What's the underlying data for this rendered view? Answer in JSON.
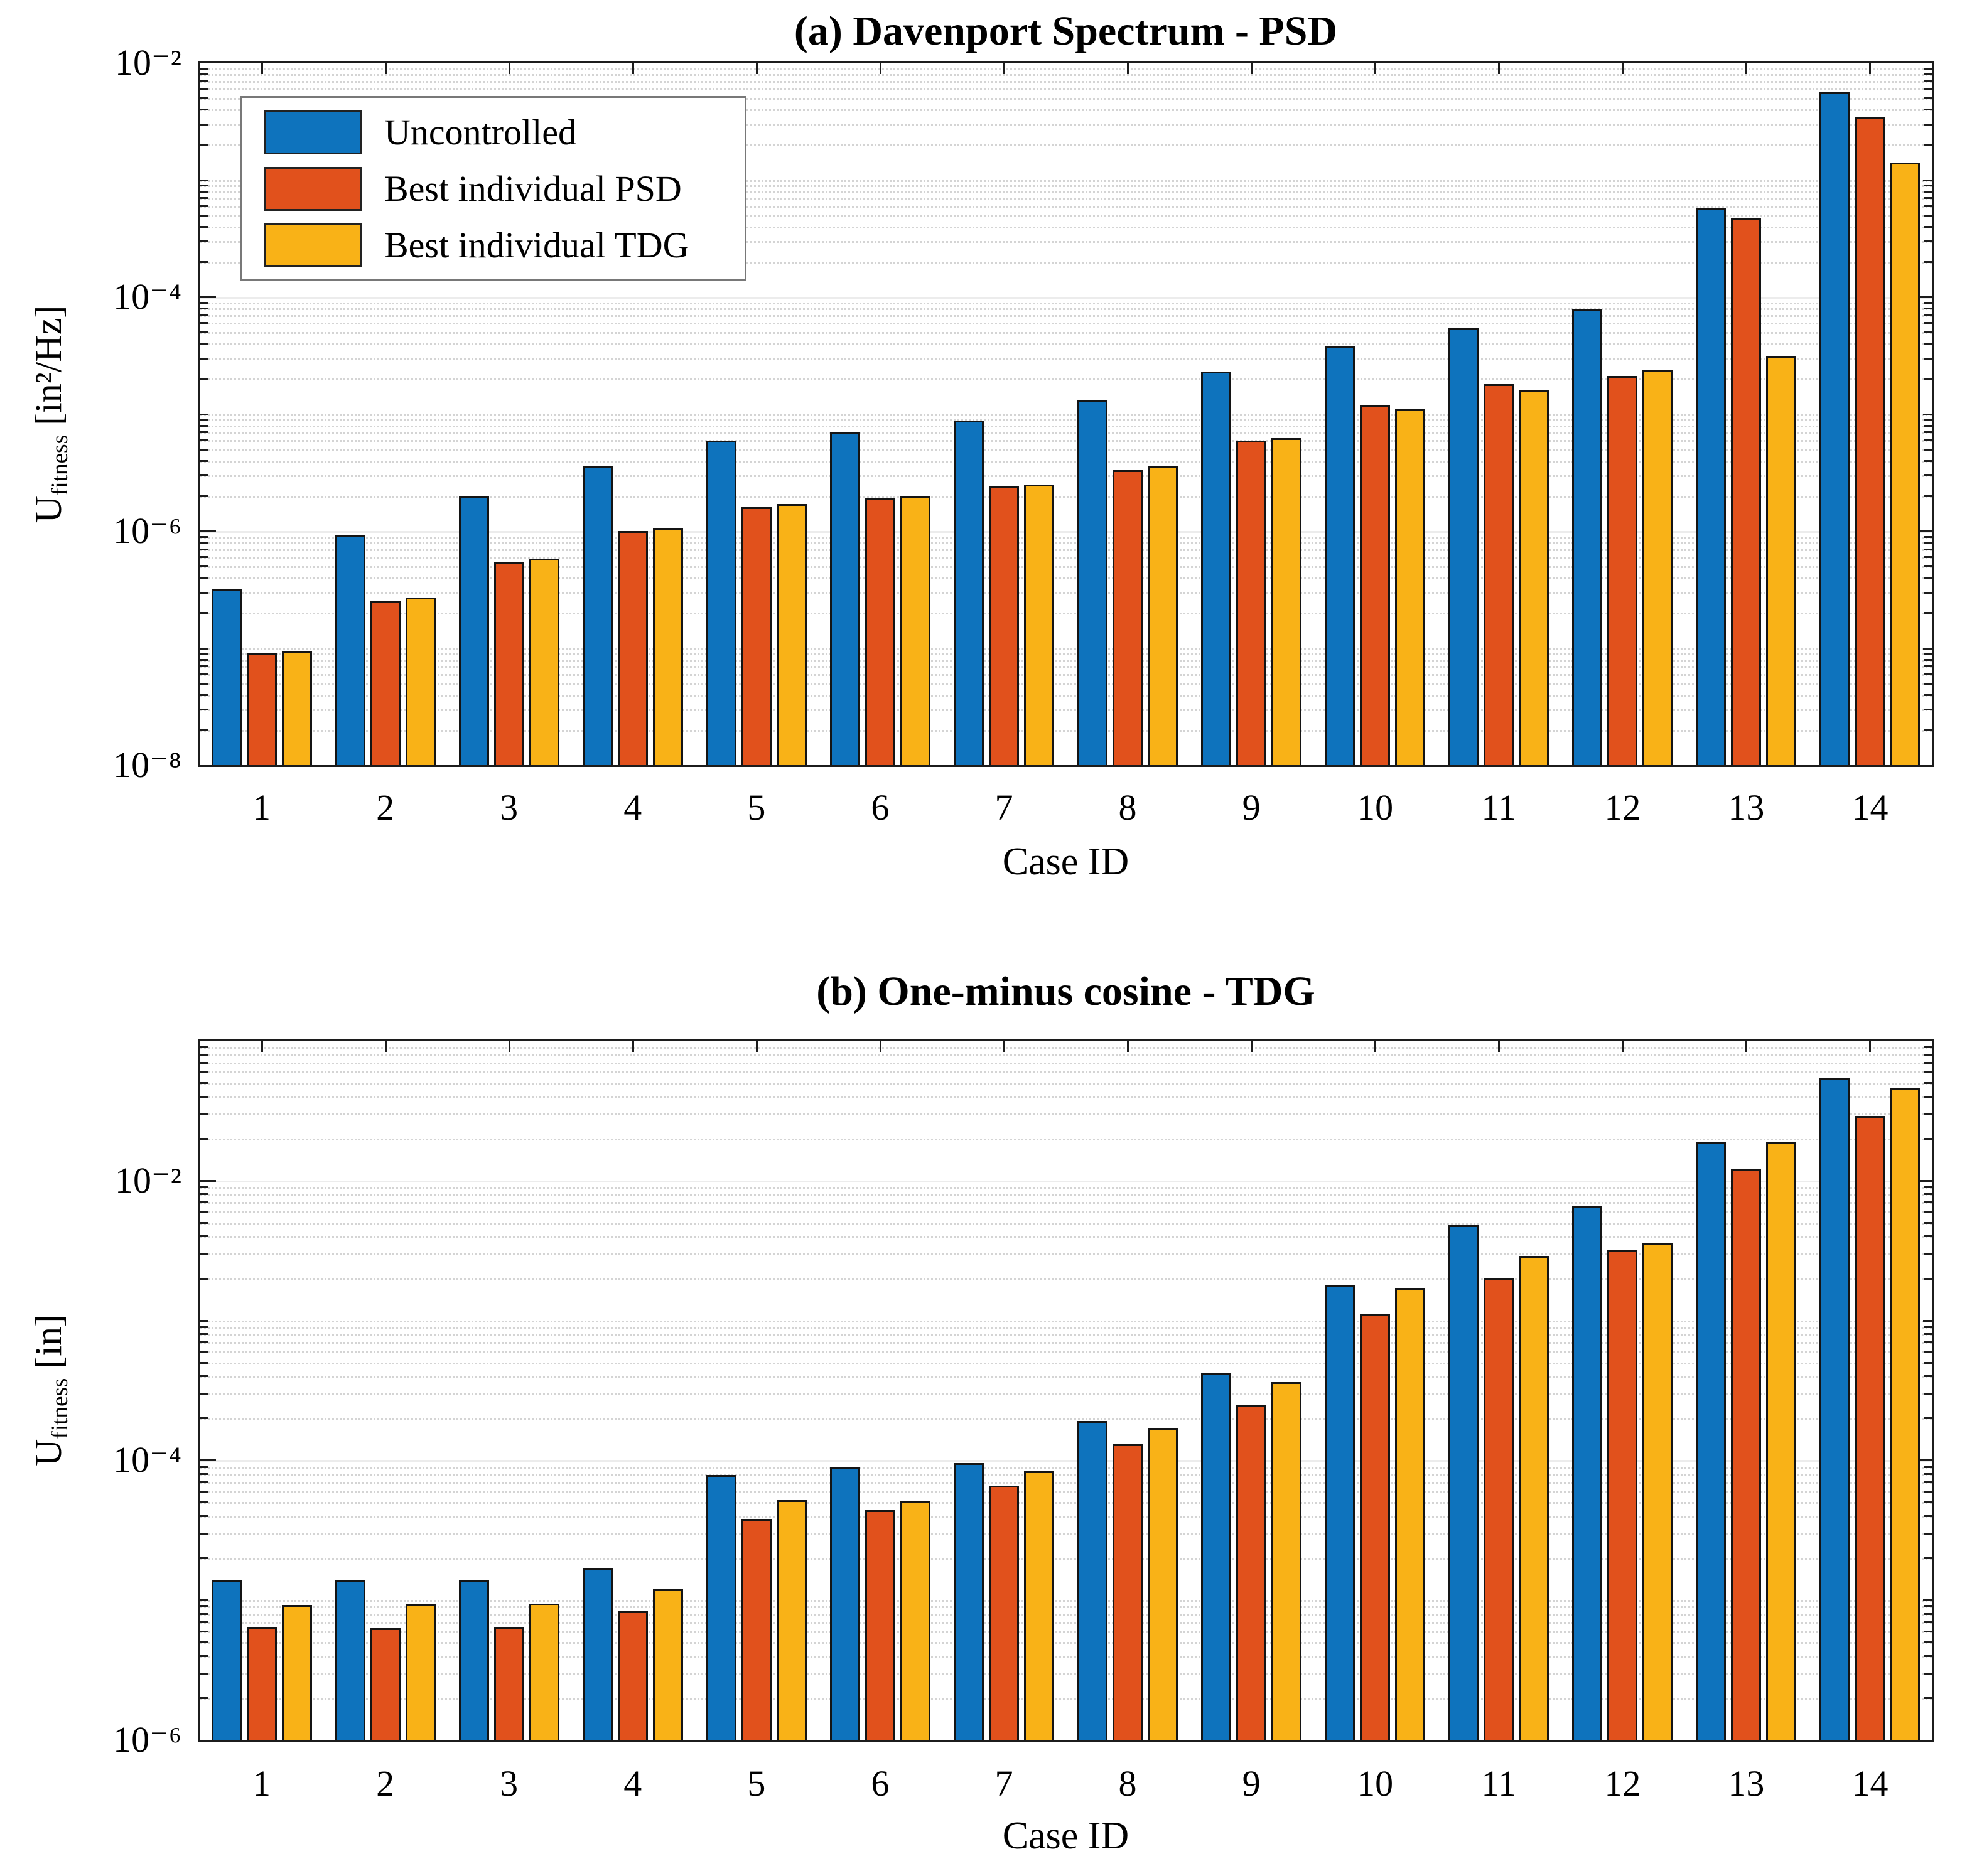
{
  "chart_data": [
    {
      "type": "bar",
      "title": "(a) Davenport Spectrum - PSD",
      "xlabel": "Case ID",
      "ylabel": "U_fitness [in²/Hz]",
      "ylabel_parts": {
        "symbol": "U",
        "subscript": "fitness",
        "unit": " [in²/Hz]"
      },
      "yscale": "log",
      "ylim": [
        1e-08,
        0.01
      ],
      "ylim_exponents": [
        -8,
        -2
      ],
      "grid": true,
      "legend_position": "top-left",
      "yticks": [
        {
          "label": "10⁻²",
          "exponent": -2
        },
        {
          "label": "10⁻⁴",
          "exponent": -4
        },
        {
          "label": "10⁻⁶",
          "exponent": -6
        },
        {
          "label": "10⁻⁸",
          "exponent": -8
        }
      ],
      "categories": [
        "1",
        "2",
        "3",
        "4",
        "5",
        "6",
        "7",
        "8",
        "9",
        "10",
        "11",
        "12",
        "13",
        "14"
      ],
      "series": [
        {
          "name": "Uncontrolled",
          "color": "#0e73bd",
          "values": [
            3.2e-07,
            9.2e-07,
            2e-06,
            3.6e-06,
            5.9e-06,
            7e-06,
            8.8e-06,
            1.3e-05,
            2.3e-05,
            3.8e-05,
            5.4e-05,
            7.8e-05,
            0.00057,
            0.0056
          ]
        },
        {
          "name": "Best individual PSD",
          "color": "#e1511c",
          "values": [
            9e-08,
            2.5e-07,
            5.4e-07,
            1e-06,
            1.6e-06,
            1.9e-06,
            2.4e-06,
            3.3e-06,
            5.9e-06,
            1.2e-05,
            1.8e-05,
            2.1e-05,
            0.00047,
            0.0034
          ]
        },
        {
          "name": "Best individual TDG",
          "color": "#f9b217",
          "values": [
            9.5e-08,
            2.7e-07,
            5.8e-07,
            1.05e-06,
            1.7e-06,
            2e-06,
            2.5e-06,
            3.6e-06,
            6.2e-06,
            1.1e-05,
            1.6e-05,
            2.4e-05,
            3.1e-05,
            0.0014
          ]
        }
      ]
    },
    {
      "type": "bar",
      "title": "(b) One-minus cosine - TDG",
      "xlabel": "Case ID",
      "ylabel": "U_fitness [in]",
      "ylabel_parts": {
        "symbol": "U",
        "subscript": "fitness",
        "unit": " [in]"
      },
      "yscale": "log",
      "ylim": [
        1e-06,
        0.1
      ],
      "ylim_exponents": [
        -6,
        -1
      ],
      "grid": true,
      "legend_position": "none",
      "yticks": [
        {
          "label": "10⁻²",
          "exponent": -2
        },
        {
          "label": "10⁻⁴",
          "exponent": -4
        },
        {
          "label": "10⁻⁶",
          "exponent": -6
        }
      ],
      "categories": [
        "1",
        "2",
        "3",
        "4",
        "5",
        "6",
        "7",
        "8",
        "9",
        "10",
        "11",
        "12",
        "13",
        "14"
      ],
      "series": [
        {
          "name": "Uncontrolled",
          "color": "#0e73bd",
          "values": [
            1.4e-05,
            1.4e-05,
            1.4e-05,
            1.7e-05,
            7.8e-05,
            9e-05,
            9.5e-05,
            0.00019,
            0.00042,
            0.0018,
            0.0048,
            0.0066,
            0.019,
            0.054
          ]
        },
        {
          "name": "Best individual PSD",
          "color": "#e1511c",
          "values": [
            6.4e-06,
            6.3e-06,
            6.4e-06,
            8.3e-06,
            3.8e-05,
            4.4e-05,
            6.6e-05,
            0.00013,
            0.00025,
            0.0011,
            0.002,
            0.0032,
            0.012,
            0.029
          ]
        },
        {
          "name": "Best individual TDG",
          "color": "#f9b217",
          "values": [
            9.2e-06,
            9.3e-06,
            9.4e-06,
            1.2e-05,
            5.2e-05,
            5.1e-05,
            8.3e-05,
            0.00017,
            0.00036,
            0.0017,
            0.0029,
            0.0036,
            0.019,
            0.046
          ]
        }
      ]
    }
  ]
}
